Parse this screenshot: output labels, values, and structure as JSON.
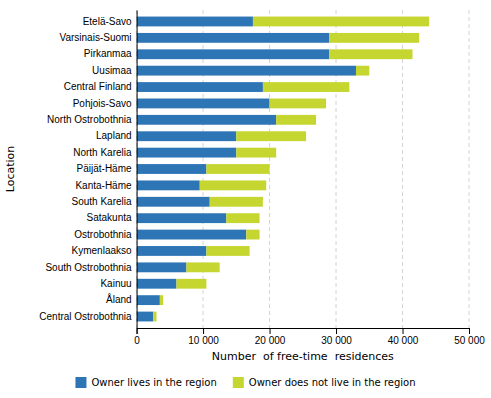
{
  "chart_data": {
    "type": "bar",
    "orientation": "horizontal",
    "stacked": true,
    "categories": [
      "Etelä-Savo",
      "Varsinais-Suomi",
      "Pirkanmaa",
      "Uusimaa",
      "Central Finland",
      "Pohjois-Savo",
      "North Ostrobothnia",
      "Lapland",
      "North Karelia",
      "Päijät-Häme",
      "Kanta-Häme",
      "South Karelia",
      "Satakunta",
      "Ostrobothnia",
      "Kymenlaakso",
      "South Ostrobothnia",
      "Kainuu",
      "Åland",
      "Central Ostrobothnia"
    ],
    "series": [
      {
        "name": "Owner lives in the region",
        "color": "#2e75b6",
        "values": [
          17500,
          29000,
          29000,
          33000,
          19000,
          20000,
          21000,
          15000,
          15000,
          10500,
          9500,
          11000,
          13500,
          16500,
          10500,
          7500,
          6000,
          3500,
          2500
        ]
      },
      {
        "name": "Owner does not live in the region",
        "color": "#c6d630",
        "values": [
          26500,
          13500,
          12500,
          2000,
          13000,
          8500,
          6000,
          10500,
          6000,
          9500,
          10000,
          8000,
          5000,
          2000,
          6500,
          5000,
          4500,
          500,
          500
        ]
      }
    ],
    "xlabel": "Number  of free-time  residences",
    "ylabel": "Location",
    "xlim": [
      0,
      50000
    ],
    "xticks": [
      0,
      {
        "value": 10000,
        "label": "10 000"
      },
      {
        "value": 20000,
        "label": "20 000"
      },
      {
        "value": 30000,
        "label": "30 000"
      },
      {
        "value": 40000,
        "label": "40 000"
      },
      {
        "value": 50000,
        "label": "50 000"
      }
    ],
    "grid": true,
    "legend": "bottom"
  }
}
